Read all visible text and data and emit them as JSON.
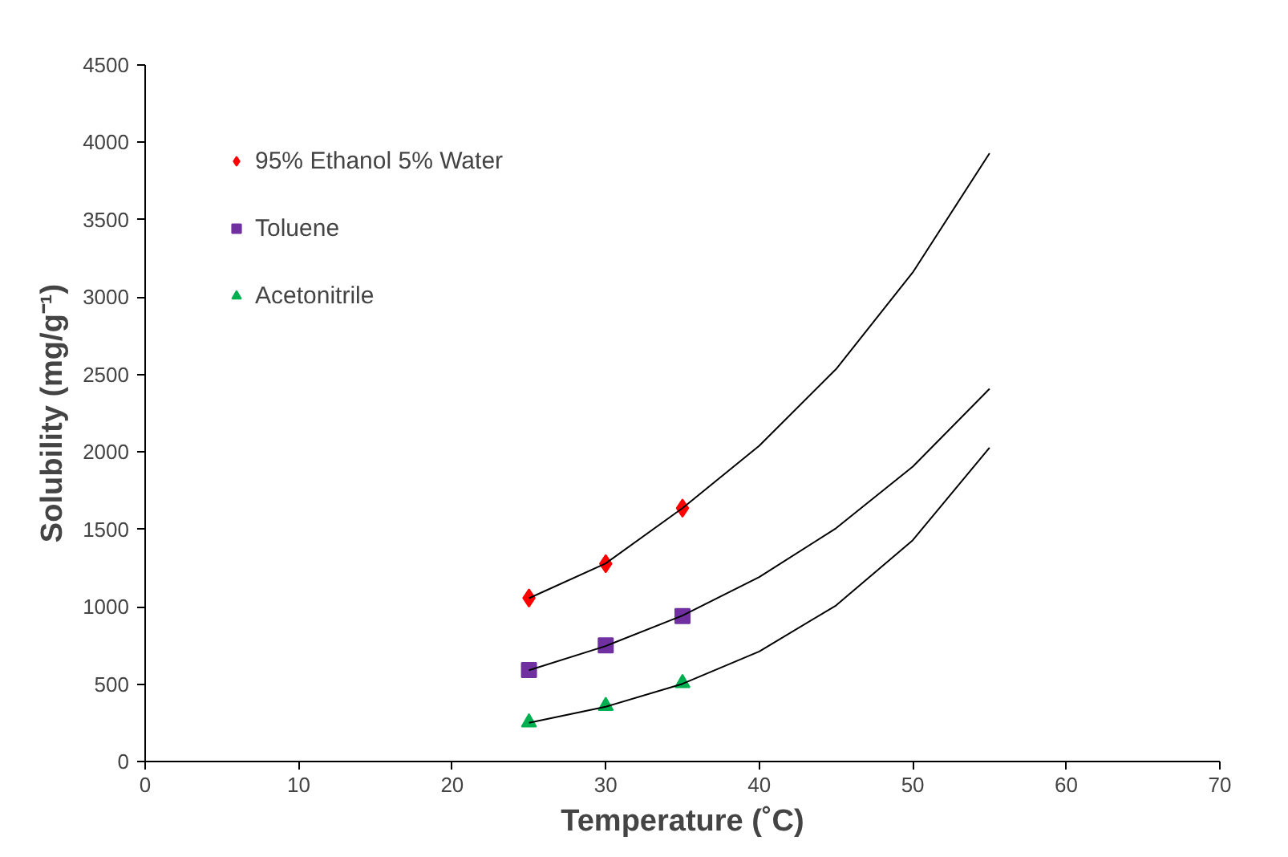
{
  "chart_data": {
    "type": "scatter",
    "xlabel": "Temperature (˚C)",
    "ylabel": "Solubility (mg/g⁻¹)",
    "xlim": [
      0,
      70
    ],
    "xticks": [
      0,
      10,
      20,
      30,
      40,
      50,
      60,
      70
    ],
    "ylim": [
      0,
      4500
    ],
    "yticks": [
      0,
      500,
      1000,
      1500,
      2000,
      2500,
      3000,
      3500,
      4000,
      4500
    ],
    "grid": false,
    "legend": "top left",
    "series": [
      {
        "name": "95% Ethanol 5% Water",
        "color": "#ff0000",
        "marker": "diamond",
        "x": [
          25,
          30,
          35
        ],
        "values": [
          1056,
          1278,
          1637
        ]
      },
      {
        "name": "Toluene",
        "color": "#7030a0",
        "marker": "square",
        "x": [
          25,
          30,
          35
        ],
        "values": [
          591,
          750,
          940
        ]
      },
      {
        "name": "Acetonitrile",
        "color": "#00b050",
        "marker": "triangle",
        "x": [
          25,
          30,
          35
        ],
        "values": [
          253,
          359,
          507
        ]
      },
      {
        "type": "line",
        "color": "#000000",
        "marker": "none",
        "x": [
          25,
          30,
          35,
          40,
          45,
          50,
          55
        ],
        "values": [
          1055,
          1280,
          1637,
          2040,
          2535,
          3160,
          3930
        ]
      },
      {
        "type": "line",
        "color": "#000000",
        "marker": "none",
        "x": [
          25,
          30,
          35,
          40,
          45,
          50,
          55
        ],
        "values": [
          590,
          746,
          943,
          1192,
          1507,
          1905,
          2408
        ]
      },
      {
        "type": "line",
        "color": "#000000",
        "marker": "none",
        "x": [
          25,
          30,
          35,
          40,
          45,
          50,
          55
        ],
        "values": [
          250,
          354,
          502,
          711,
          1008,
          1430,
          2028
        ]
      }
    ]
  }
}
